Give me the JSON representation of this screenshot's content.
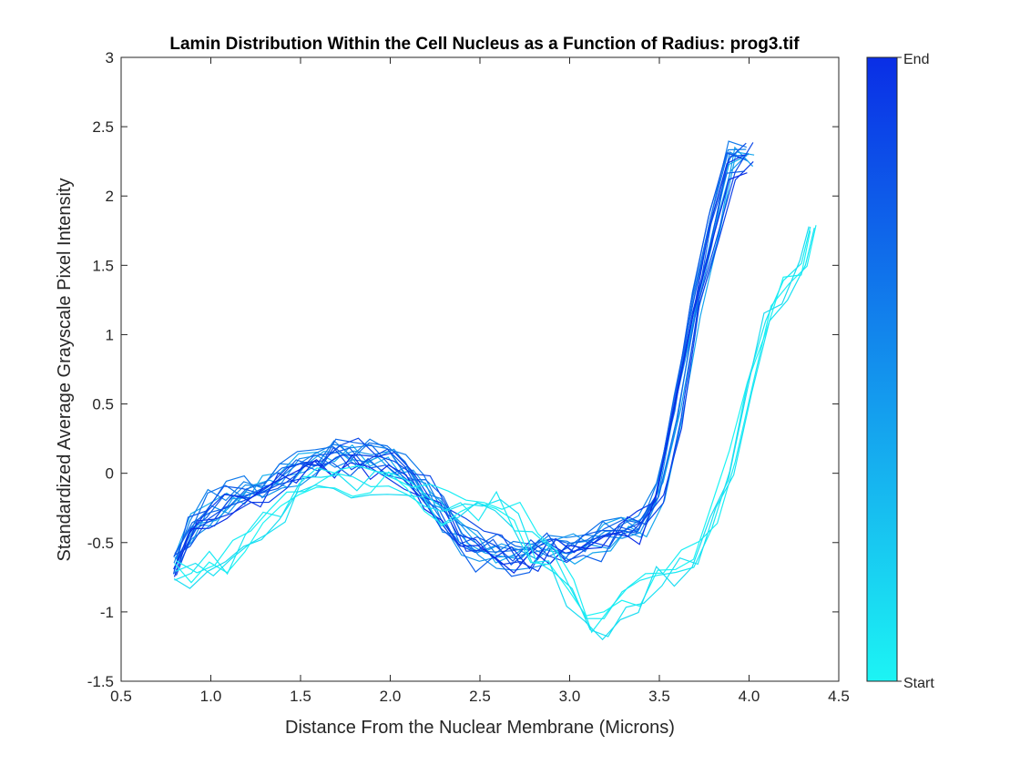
{
  "chart_data": {
    "type": "line",
    "title": "Lamin Distribution Within the Cell Nucleus as a Function of Radius: prog3.tif",
    "xlabel": "Distance From the Nuclear Membrane (Microns)",
    "ylabel": "Standardized Average Grayscale Pixel Intensity",
    "xlim": [
      0.5,
      4.5
    ],
    "ylim": [
      -1.5,
      3
    ],
    "xticks": [
      0.5,
      1.0,
      1.5,
      2.0,
      2.5,
      3.0,
      3.5,
      4.0,
      4.5
    ],
    "xtick_labels": [
      "0.5",
      "1.0",
      "1.5",
      "2.0",
      "2.5",
      "3.0",
      "3.5",
      "4.0",
      "4.5"
    ],
    "yticks": [
      -1.5,
      -1,
      -0.5,
      0,
      0.5,
      1,
      1.5,
      2,
      2.5,
      3
    ],
    "ytick_labels": [
      "-1.5",
      "-1",
      "-0.5",
      "0",
      "0.5",
      "1",
      "1.5",
      "2",
      "2.5",
      "3"
    ],
    "grid": false,
    "colorbar": {
      "top_label": "End",
      "bottom_label": "Start",
      "color_start": "#1cf4f4",
      "color_end": "#0a2ee6"
    },
    "series_groups": [
      {
        "x": [
          0.8,
          0.9,
          1.0,
          1.1,
          1.2,
          1.3,
          1.4,
          1.5,
          1.6,
          1.7,
          1.8,
          1.9,
          2.0,
          2.1,
          2.2,
          2.3,
          2.4,
          2.5,
          2.6,
          2.7,
          2.8,
          2.9,
          3.0,
          3.1,
          3.2,
          3.3,
          3.4,
          3.5,
          3.6,
          3.7,
          3.8,
          3.9,
          4.0
        ],
        "mean": [
          -0.65,
          -0.42,
          -0.28,
          -0.2,
          -0.17,
          -0.12,
          -0.06,
          0.05,
          0.08,
          0.1,
          0.12,
          0.1,
          0.08,
          -0.02,
          -0.12,
          -0.3,
          -0.45,
          -0.55,
          -0.58,
          -0.6,
          -0.58,
          -0.55,
          -0.55,
          -0.52,
          -0.48,
          -0.42,
          -0.35,
          -0.15,
          0.45,
          1.15,
          1.75,
          2.25,
          2.3
        ],
        "lines": 16,
        "color_range": [
          0.35,
          1.0
        ]
      },
      {
        "x": [
          0.8,
          0.9,
          1.0,
          1.1,
          1.2,
          1.3,
          1.4,
          1.5,
          1.6,
          1.7,
          1.8,
          1.9,
          2.0,
          2.1,
          2.2,
          2.3,
          2.4,
          2.5,
          2.6,
          2.7,
          2.8,
          2.9,
          3.0,
          3.1,
          3.2,
          3.3,
          3.4,
          3.5,
          3.6,
          3.7,
          3.8,
          3.9,
          4.0,
          4.1,
          4.2,
          4.3,
          4.35
        ],
        "mean": [
          -0.7,
          -0.72,
          -0.65,
          -0.62,
          -0.48,
          -0.35,
          -0.22,
          -0.1,
          -0.05,
          -0.05,
          -0.08,
          -0.05,
          -0.05,
          -0.12,
          -0.2,
          -0.25,
          -0.28,
          -0.25,
          -0.22,
          -0.35,
          -0.5,
          -0.58,
          -0.8,
          -1.1,
          -1.05,
          -0.95,
          -0.85,
          -0.7,
          -0.65,
          -0.58,
          -0.3,
          0.1,
          0.6,
          1.15,
          1.35,
          1.55,
          1.75
        ],
        "lines": 5,
        "color_range": [
          0.0,
          0.12
        ]
      }
    ]
  }
}
